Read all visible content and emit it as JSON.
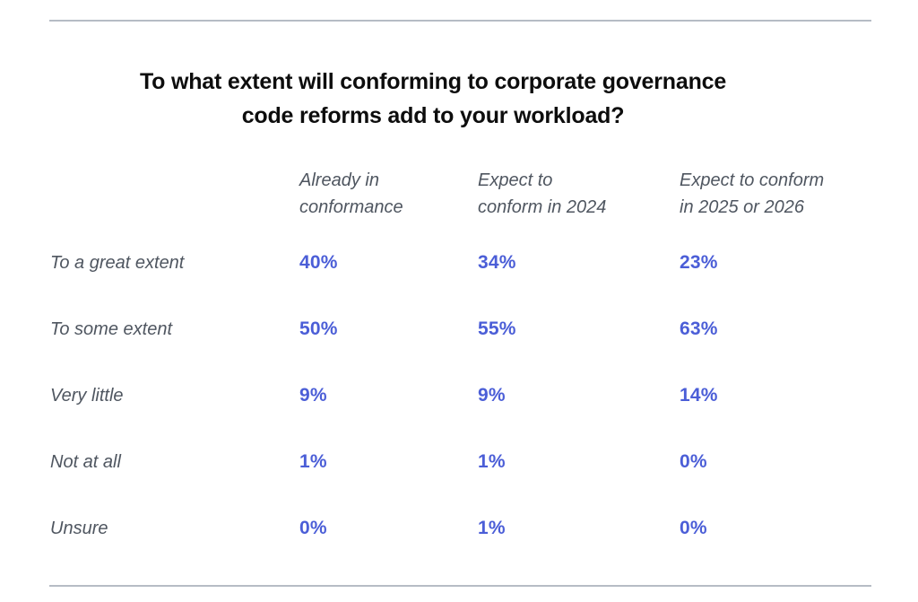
{
  "chart_data": {
    "type": "table",
    "title": "To what extent will conforming to corporate governance code reforms add to your workload?",
    "title_lines": [
      "To what extent will conforming to corporate governance",
      "code reforms add to your workload?"
    ],
    "columns": [
      {
        "label": "Already in conformance",
        "line1": "Already in",
        "line2": "conformance"
      },
      {
        "label": "Expect to conform in 2024",
        "line1": "Expect to",
        "line2": "conform in 2024"
      },
      {
        "label": "Expect to conform in 2025 or 2026",
        "line1": "Expect to conform",
        "line2": "in 2025 or 2026"
      }
    ],
    "rows": [
      {
        "label": "To a great extent",
        "values": [
          "40%",
          "34%",
          "23%"
        ]
      },
      {
        "label": "To some extent",
        "values": [
          "50%",
          "55%",
          "63%"
        ]
      },
      {
        "label": "Very little",
        "values": [
          "9%",
          "9%",
          "14%"
        ]
      },
      {
        "label": "Not at all",
        "values": [
          "1%",
          "1%",
          "0%"
        ]
      },
      {
        "label": "Unsure",
        "values": [
          "0%",
          "1%",
          "0%"
        ]
      }
    ]
  },
  "colors": {
    "title": "#0d0d0d",
    "label": "#4f5660",
    "value": "#4b5ed7",
    "rule": "#b6bcc5",
    "background": "#ffffff"
  }
}
